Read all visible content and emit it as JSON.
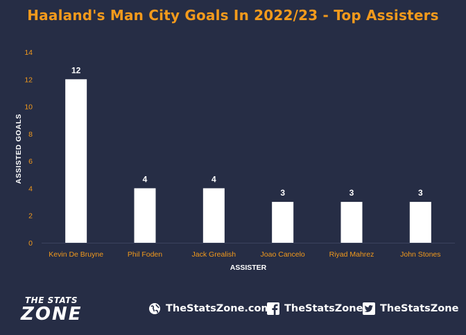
{
  "title": "Haaland's Man City Goals In 2022/23 - Top Assisters",
  "chart_data": {
    "type": "bar",
    "categories": [
      "Kevin De Bruyne",
      "Phil Foden",
      "Jack Grealish",
      "Joao Cancelo",
      "Riyad Mahrez",
      "John Stones"
    ],
    "values": [
      12,
      4,
      4,
      3,
      3,
      3
    ],
    "xlabel": "ASSISTER",
    "ylabel": "ASSISTED GOALS",
    "ylim": [
      0,
      14
    ],
    "yticks": [
      0,
      2,
      4,
      6,
      8,
      10,
      12,
      14
    ],
    "grid": false,
    "legend": "none",
    "bar_color": "#ffffff",
    "tick_color": "#f39a1c"
  },
  "footer": {
    "brand_top": "THE STATS",
    "brand_big": "ZONE",
    "website": "TheStatsZone.com",
    "facebook": "TheStatsZone",
    "twitter": "TheStatsZone"
  },
  "colors": {
    "background": "#262d45",
    "accent": "#f39a1c",
    "text": "#ffffff"
  },
  "icons": {
    "website": "globe-icon",
    "facebook": "facebook-icon",
    "twitter": "twitter-icon"
  }
}
